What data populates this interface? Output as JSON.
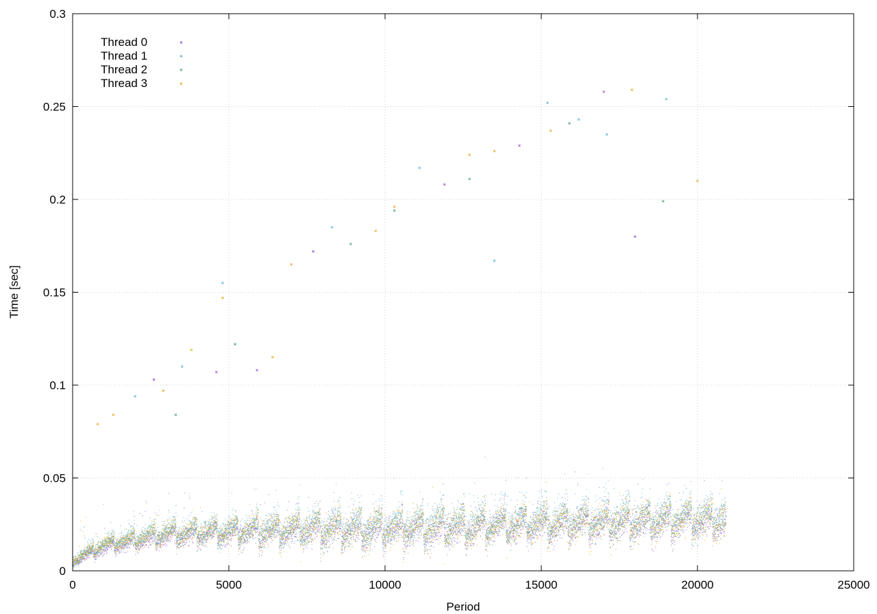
{
  "chart_data": {
    "type": "scatter",
    "title": "",
    "xlabel": "Period",
    "ylabel": "Time [sec]",
    "xlim": [
      0,
      25000
    ],
    "ylim": [
      0,
      0.3
    ],
    "xticks": [
      "0",
      "5000",
      "10000",
      "15000",
      "20000",
      "25000"
    ],
    "yticks": [
      "0",
      "0.05",
      "0.1",
      "0.15",
      "0.2",
      "0.25",
      "0.3"
    ],
    "grid": true,
    "legend_position": "top-left",
    "x_range_of_points": [
      0,
      20900
    ],
    "segment_period": 660,
    "series": [
      {
        "name": "Thread 0",
        "color": "#9455d4",
        "baseline": [
          [
            0,
            0.005
          ],
          [
            1000,
            0.012
          ],
          [
            3000,
            0.018
          ],
          [
            6000,
            0.021
          ],
          [
            10000,
            0.021
          ],
          [
            15000,
            0.024
          ],
          [
            20900,
            0.026
          ]
        ],
        "sawtooth_rise": 0.008,
        "spread": 0.004,
        "outliers": [
          [
            2600,
            0.103
          ],
          [
            4600,
            0.107
          ],
          [
            5900,
            0.108
          ],
          [
            7700,
            0.172
          ],
          [
            11900,
            0.208
          ],
          [
            14300,
            0.229
          ],
          [
            17000,
            0.258
          ],
          [
            18000,
            0.18
          ]
        ]
      },
      {
        "name": "Thread 1",
        "color": "#5aaed1",
        "baseline": [
          [
            0,
            0.006
          ],
          [
            1000,
            0.015
          ],
          [
            3000,
            0.021
          ],
          [
            6000,
            0.023
          ],
          [
            10000,
            0.024
          ],
          [
            15000,
            0.028
          ],
          [
            20900,
            0.03
          ]
        ],
        "sawtooth_rise": 0.011,
        "spread": 0.005,
        "outliers": [
          [
            2000,
            0.094
          ],
          [
            3500,
            0.11
          ],
          [
            4800,
            0.155
          ],
          [
            8300,
            0.185
          ],
          [
            11100,
            0.217
          ],
          [
            13500,
            0.167
          ],
          [
            15200,
            0.252
          ],
          [
            16200,
            0.243
          ],
          [
            17100,
            0.235
          ],
          [
            19000,
            0.254
          ]
        ]
      },
      {
        "name": "Thread 2",
        "color": "#4e9e6e",
        "baseline": [
          [
            0,
            0.006
          ],
          [
            1000,
            0.014
          ],
          [
            3000,
            0.02
          ],
          [
            6000,
            0.022
          ],
          [
            10000,
            0.023
          ],
          [
            15000,
            0.026
          ],
          [
            20900,
            0.028
          ]
        ],
        "sawtooth_rise": 0.009,
        "spread": 0.004,
        "outliers": [
          [
            3300,
            0.084
          ],
          [
            5200,
            0.122
          ],
          [
            8900,
            0.176
          ],
          [
            10300,
            0.194
          ],
          [
            12700,
            0.211
          ],
          [
            15900,
            0.241
          ],
          [
            18900,
            0.199
          ]
        ]
      },
      {
        "name": "Thread 3",
        "color": "#e3a824",
        "baseline": [
          [
            0,
            0.006
          ],
          [
            1000,
            0.014
          ],
          [
            3000,
            0.02
          ],
          [
            6000,
            0.022
          ],
          [
            10000,
            0.022
          ],
          [
            15000,
            0.025
          ],
          [
            20900,
            0.027
          ]
        ],
        "sawtooth_rise": 0.01,
        "spread": 0.0045,
        "outliers": [
          [
            800,
            0.079
          ],
          [
            1300,
            0.084
          ],
          [
            2900,
            0.097
          ],
          [
            3800,
            0.119
          ],
          [
            4800,
            0.147
          ],
          [
            6400,
            0.115
          ],
          [
            7000,
            0.165
          ],
          [
            9700,
            0.183
          ],
          [
            10300,
            0.196
          ],
          [
            12700,
            0.224
          ],
          [
            13500,
            0.226
          ],
          [
            15300,
            0.237
          ],
          [
            17900,
            0.259
          ],
          [
            20000,
            0.21
          ]
        ]
      }
    ]
  }
}
